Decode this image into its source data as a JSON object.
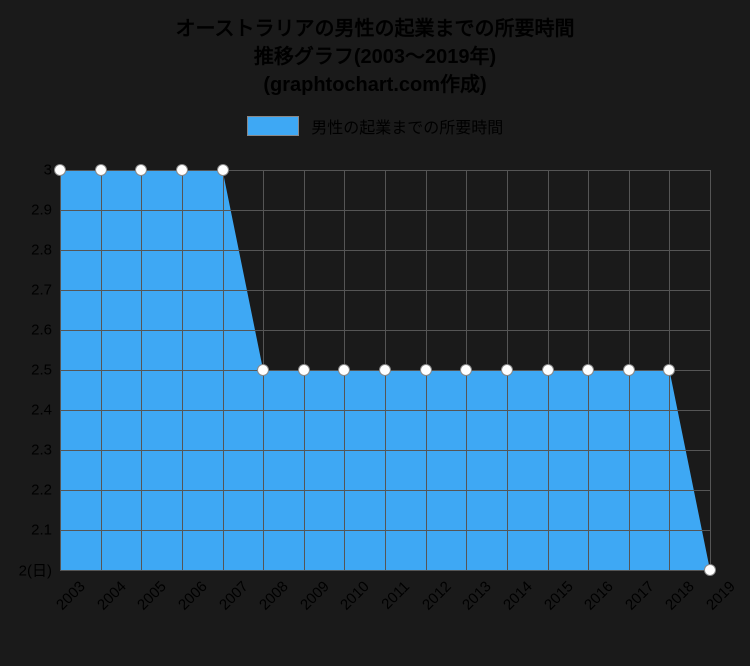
{
  "chart": {
    "type": "area",
    "title_line1": "オーストラリアの男性の起業までの所要時間",
    "title_line2": "推移グラフ(2003〜2019年)",
    "title_line3": "(graphtochart.com作成)",
    "title_fontsize": 20,
    "title_color": "#000000",
    "legend_label": "男性の起業までの所要時間",
    "legend_fontsize": 16,
    "legend_swatch_color": "#3ea8f4",
    "background_color": "#1a1a1a",
    "grid_color": "#555555",
    "fill_color": "#3ea8f4",
    "marker_fill": "#ffffff",
    "marker_border": "#888888",
    "marker_size": 10,
    "xlim": [
      2003,
      2019
    ],
    "ylim": [
      2,
      3
    ],
    "y_label_suffix": "(日)",
    "yticks": [
      2,
      2.1,
      2.2,
      2.3,
      2.4,
      2.5,
      2.6,
      2.7,
      2.8,
      2.9,
      3
    ],
    "xticks": [
      2003,
      2004,
      2005,
      2006,
      2007,
      2008,
      2009,
      2010,
      2011,
      2012,
      2013,
      2014,
      2015,
      2016,
      2017,
      2018,
      2019
    ],
    "years": [
      2003,
      2004,
      2005,
      2006,
      2007,
      2008,
      2009,
      2010,
      2011,
      2012,
      2013,
      2014,
      2015,
      2016,
      2017,
      2018,
      2019
    ],
    "values": [
      3,
      3,
      3,
      3,
      3,
      2.5,
      2.5,
      2.5,
      2.5,
      2.5,
      2.5,
      2.5,
      2.5,
      2.5,
      2.5,
      2.5,
      2
    ],
    "axis_label_fontsize": 15,
    "axis_label_color": "#000000"
  }
}
